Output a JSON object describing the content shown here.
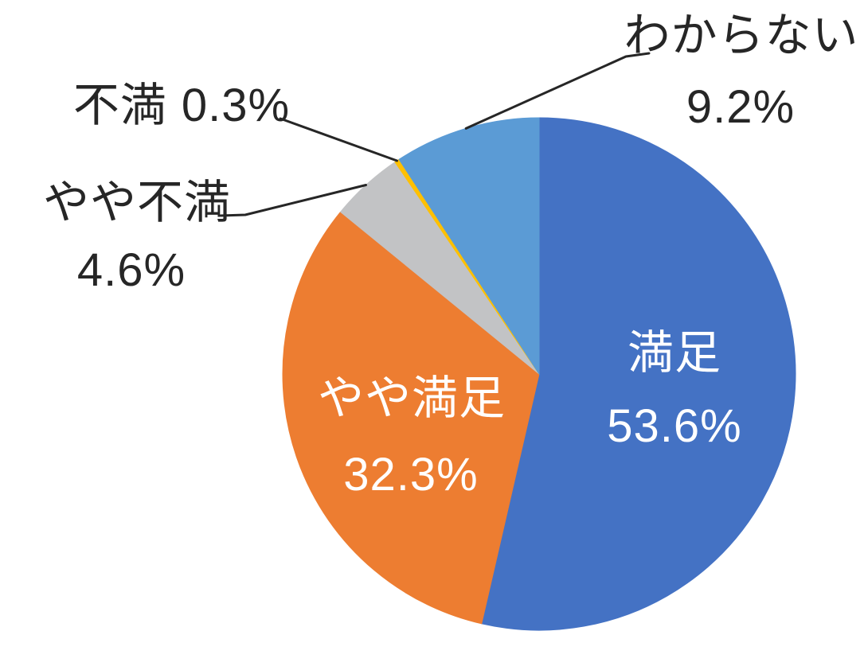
{
  "chart_data": {
    "type": "pie",
    "title": "",
    "unit": "%",
    "start_angle_deg": 0,
    "direction": "clockwise",
    "background": "#FFFFFF",
    "leader_line_color": "#262626",
    "outside_label_color": "#262626",
    "inside_label_color": "#FFFFFF",
    "slices": [
      {
        "label": "満足",
        "value": 53.6,
        "pct_text": "53.6%",
        "color": "#4472C4",
        "label_placement": "inside"
      },
      {
        "label": "やや満足",
        "value": 32.3,
        "pct_text": "32.3%",
        "color": "#ED7D31",
        "label_placement": "inside"
      },
      {
        "label": "やや不満",
        "value": 4.6,
        "pct_text": "4.6%",
        "color": "#C2C3C5",
        "label_placement": "outside"
      },
      {
        "label": "不満",
        "value": 0.3,
        "pct_text": "0.3%",
        "color": "#FFC000",
        "label_placement": "outside"
      },
      {
        "label": "わからない",
        "value": 9.2,
        "pct_text": "9.2%",
        "color": "#5B9BD5",
        "label_placement": "outside"
      }
    ]
  }
}
